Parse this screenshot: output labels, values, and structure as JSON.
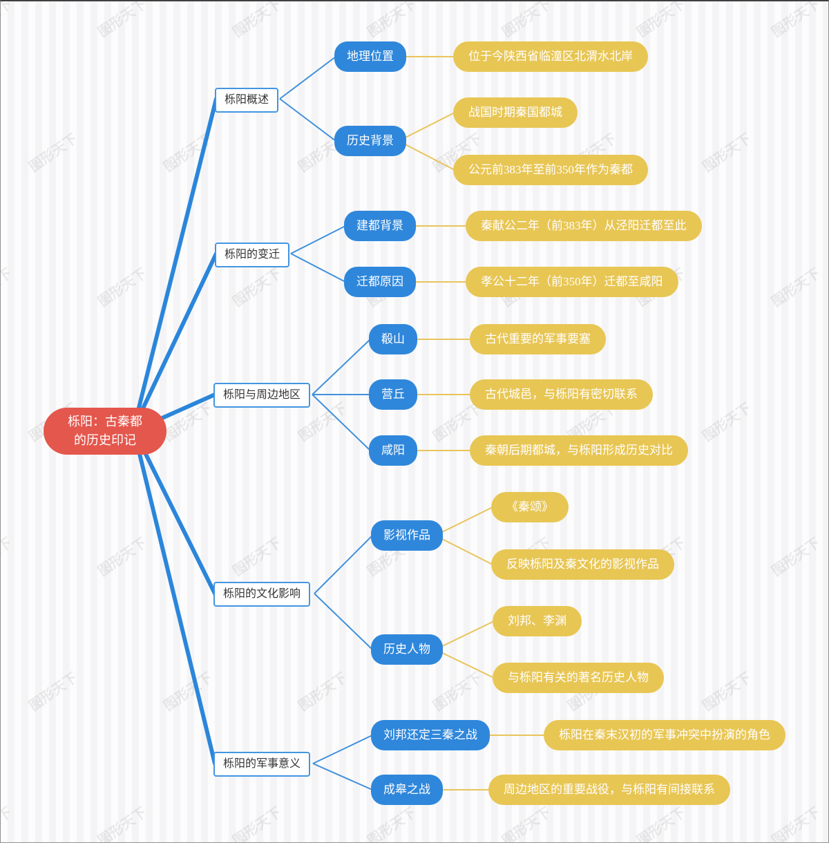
{
  "watermark": "图形天下",
  "colors": {
    "root_fill": "#E4574D",
    "branch_border": "#4295E1",
    "topic_fill": "#2F87DB",
    "leaf_fill": "#E8C654",
    "line_blue": "#2F87DB",
    "line_yellow": "#E9C45B"
  },
  "root": {
    "label": "栎阳：古秦都的历史印记"
  },
  "branches": [
    {
      "label": "栎阳概述",
      "topics": [
        {
          "label": "地理位置",
          "leaves": [
            {
              "label": "位于今陕西省临潼区北渭水北岸"
            }
          ]
        },
        {
          "label": "历史背景",
          "leaves": [
            {
              "label": "战国时期秦国都城"
            },
            {
              "label": "公元前383年至前350年作为秦都"
            }
          ]
        }
      ]
    },
    {
      "label": "栎阳的变迁",
      "topics": [
        {
          "label": "建都背景",
          "leaves": [
            {
              "label": "秦献公二年（前383年）从泾阳迁都至此"
            }
          ]
        },
        {
          "label": "迁都原因",
          "leaves": [
            {
              "label": "孝公十二年（前350年）迁都至咸阳"
            }
          ]
        }
      ]
    },
    {
      "label": "栎阳与周边地区",
      "topics": [
        {
          "label": "殽山",
          "leaves": [
            {
              "label": "古代重要的军事要塞"
            }
          ]
        },
        {
          "label": "营丘",
          "leaves": [
            {
              "label": "古代城邑，与栎阳有密切联系"
            }
          ]
        },
        {
          "label": "咸阳",
          "leaves": [
            {
              "label": "秦朝后期都城，与栎阳形成历史对比"
            }
          ]
        }
      ]
    },
    {
      "label": "栎阳的文化影响",
      "topics": [
        {
          "label": "影视作品",
          "leaves": [
            {
              "label": "《秦颂》"
            },
            {
              "label": "反映栎阳及秦文化的影视作品"
            }
          ]
        },
        {
          "label": "历史人物",
          "leaves": [
            {
              "label": "刘邦、李渊"
            },
            {
              "label": "与栎阳有关的著名历史人物"
            }
          ]
        }
      ]
    },
    {
      "label": "栎阳的军事意义",
      "topics": [
        {
          "label": "刘邦还定三秦之战",
          "leaves": [
            {
              "label": "栎阳在秦末汉初的军事冲突中扮演的角色"
            }
          ]
        },
        {
          "label": "成皋之战",
          "leaves": [
            {
              "label": "周边地区的重要战役，与栎阳有间接联系"
            }
          ]
        }
      ]
    }
  ]
}
